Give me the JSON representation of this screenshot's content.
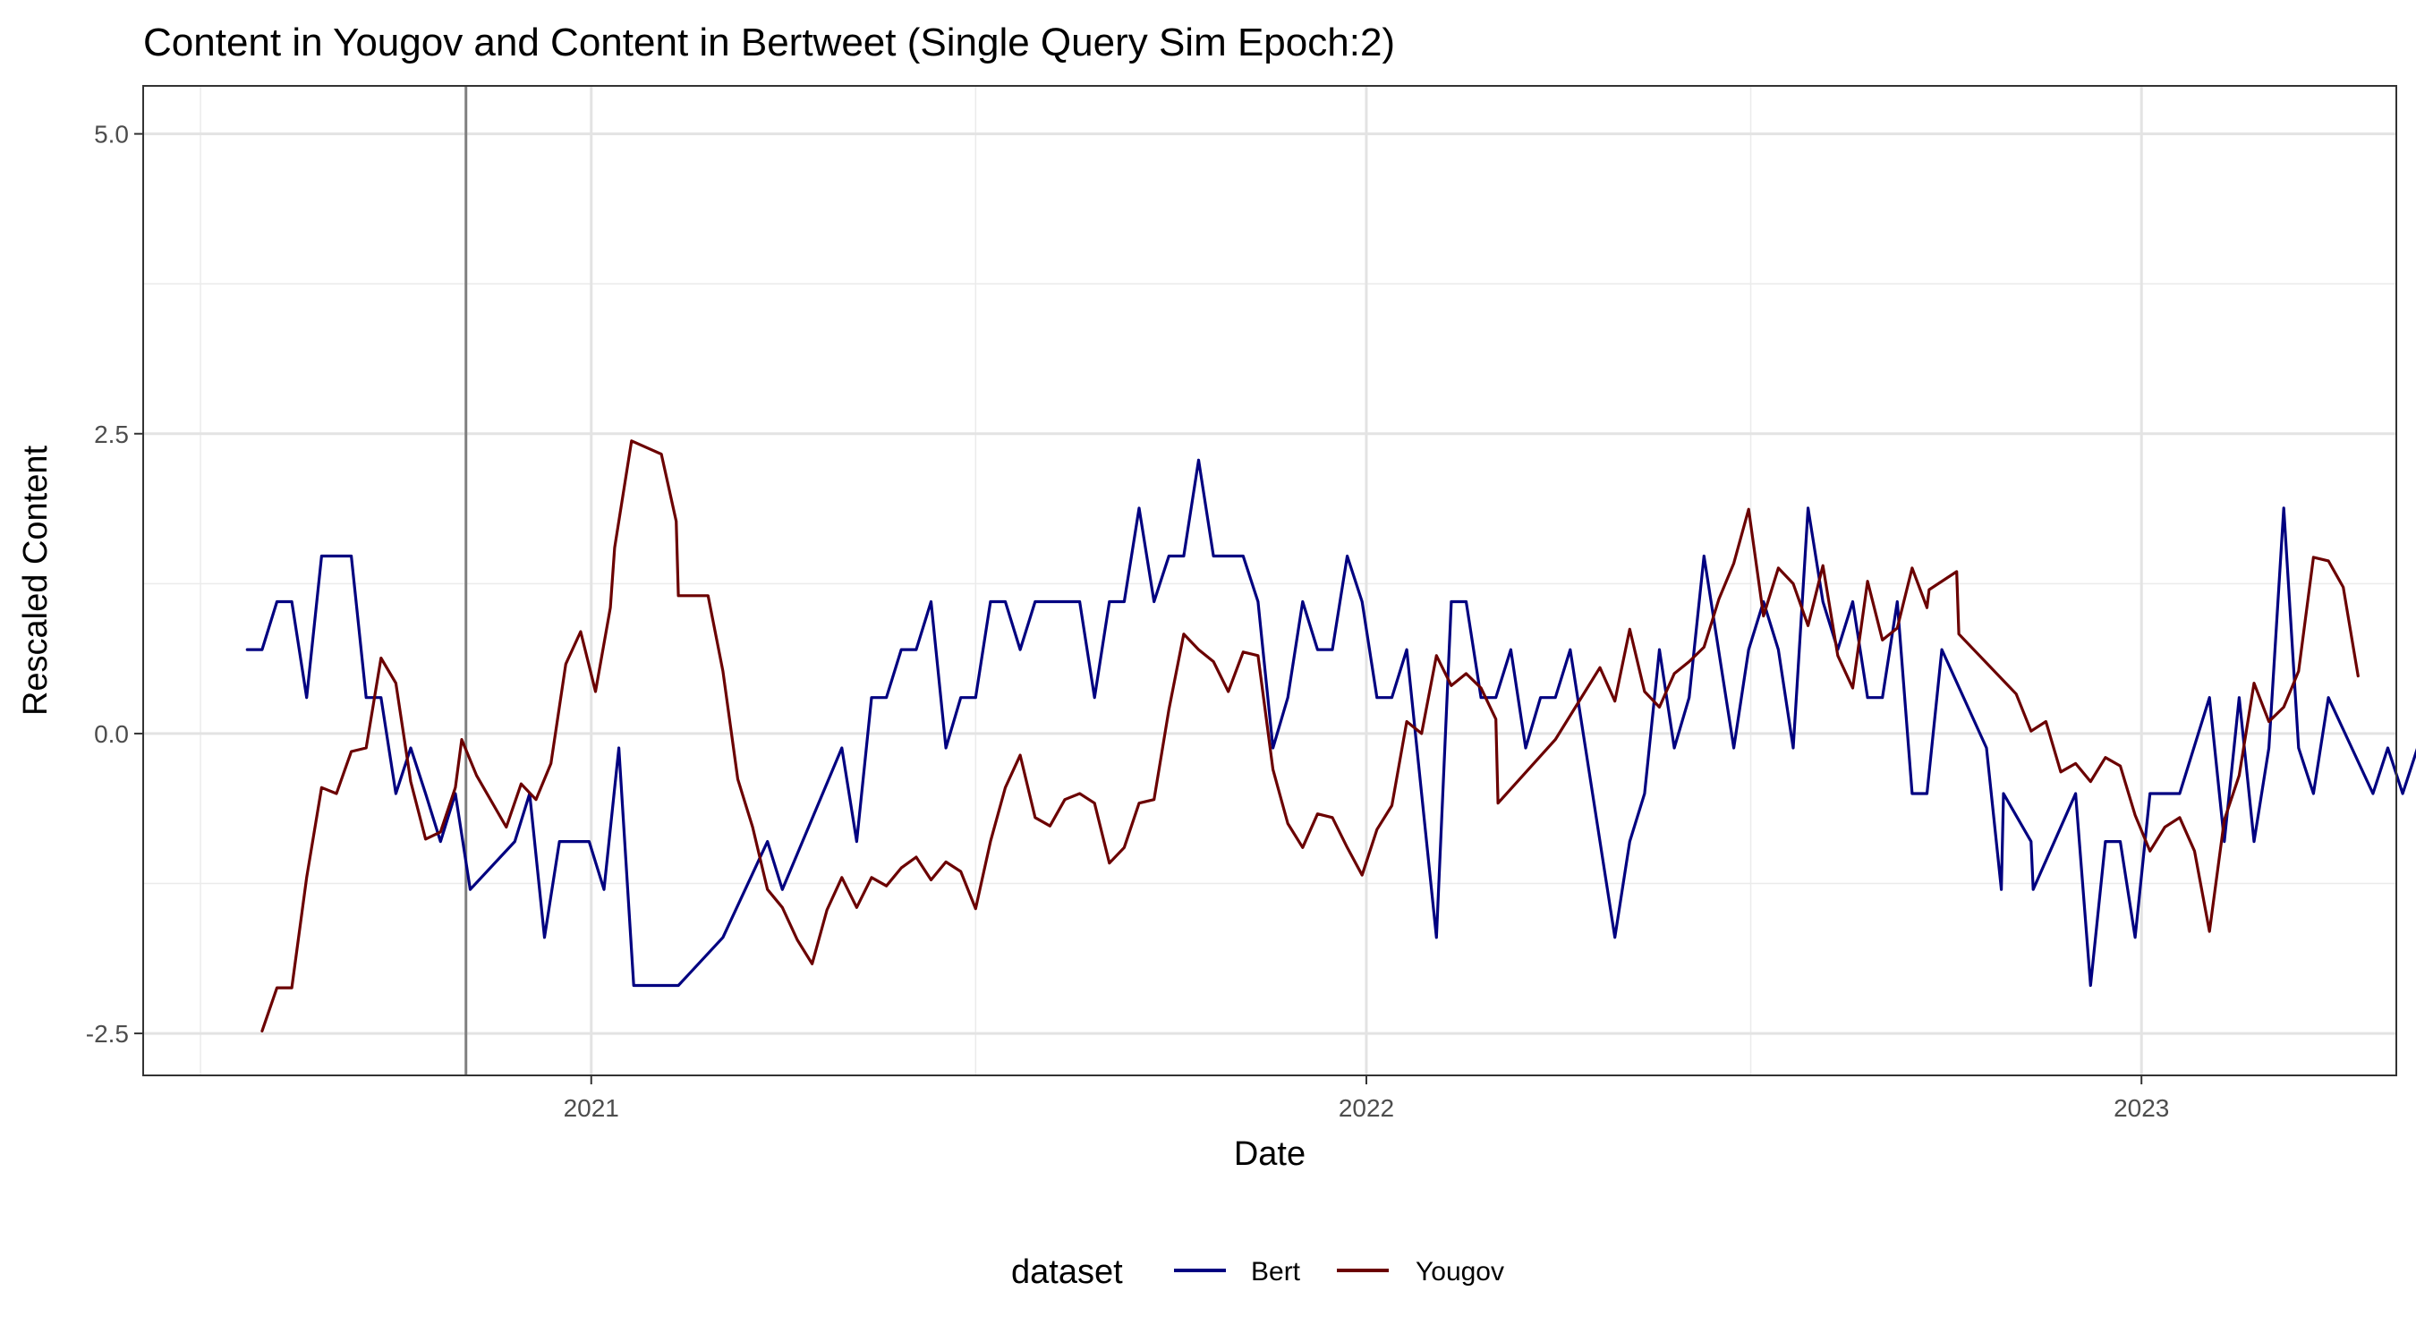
{
  "chart_data": {
    "type": "line",
    "title": "Content in Yougov and Content in Bertweet (Single Query Sim Epoch:2)",
    "xlabel": "Date",
    "ylabel": "Rescaled  Content",
    "xlim": [
      "2020-06-04",
      "2023-05-01"
    ],
    "ylim": [
      -2.85,
      5.4
    ],
    "x_ticks": [
      {
        "date": "2021-01-01",
        "label": "2021"
      },
      {
        "date": "2022-01-01",
        "label": "2022"
      },
      {
        "date": "2023-01-01",
        "label": "2023"
      }
    ],
    "x_minor_ticks": [
      "2020-07-01",
      "2021-07-01",
      "2022-07-01",
      "2023-07-01"
    ],
    "y_ticks": [
      {
        "value": 5.0,
        "label": "5.0"
      },
      {
        "value": 2.5,
        "label": "2.5"
      },
      {
        "value": 0.0,
        "label": "0.0"
      },
      {
        "value": -2.5,
        "label": "-2.5"
      }
    ],
    "y_minor_ticks": [
      3.75,
      1.25,
      -1.25
    ],
    "vline": "2020-11-03",
    "grid": true,
    "legend": {
      "title": "dataset",
      "position": "bottom"
    },
    "series": [
      {
        "name": "Bert",
        "color": "#000080",
        "points": [
          [
            "2020-07-23",
            0.7
          ],
          [
            "2020-07-30",
            0.7
          ],
          [
            "2020-08-06",
            1.1
          ],
          [
            "2020-08-13",
            1.1
          ],
          [
            "2020-08-20",
            0.3
          ],
          [
            "2020-08-27",
            1.48
          ],
          [
            "2020-09-03",
            1.48
          ],
          [
            "2020-09-10",
            1.48
          ],
          [
            "2020-09-17",
            0.3
          ],
          [
            "2020-09-24",
            0.3
          ],
          [
            "2020-10-01",
            -0.5
          ],
          [
            "2020-10-08",
            -0.12
          ],
          [
            "2020-10-15",
            -0.5
          ],
          [
            "2020-10-22",
            -0.9
          ],
          [
            "2020-10-29",
            -0.5
          ],
          [
            "2020-11-05",
            -1.3
          ],
          [
            "2020-11-26",
            -0.9
          ],
          [
            "2020-12-03",
            -0.5
          ],
          [
            "2020-12-10",
            -1.7
          ],
          [
            "2020-12-17",
            -0.9
          ],
          [
            "2020-12-24",
            -0.9
          ],
          [
            "2020-12-31",
            -0.9
          ],
          [
            "2021-01-07",
            -1.3
          ],
          [
            "2021-01-14",
            -0.12
          ],
          [
            "2021-01-21",
            -2.1
          ],
          [
            "2021-02-11",
            -2.1
          ],
          [
            "2021-03-04",
            -1.7
          ],
          [
            "2021-03-25",
            -0.9
          ],
          [
            "2021-04-01",
            -1.3
          ],
          [
            "2021-04-29",
            -0.12
          ],
          [
            "2021-05-06",
            -0.9
          ],
          [
            "2021-05-13",
            0.3
          ],
          [
            "2021-05-20",
            0.3
          ],
          [
            "2021-05-27",
            0.7
          ],
          [
            "2021-06-03",
            0.7
          ],
          [
            "2021-06-10",
            1.1
          ],
          [
            "2021-06-17",
            -0.12
          ],
          [
            "2021-06-24",
            0.3
          ],
          [
            "2021-07-01",
            0.3
          ],
          [
            "2021-07-08",
            1.1
          ],
          [
            "2021-07-15",
            1.1
          ],
          [
            "2021-07-22",
            0.7
          ],
          [
            "2021-07-29",
            1.1
          ],
          [
            "2021-08-19",
            1.1
          ],
          [
            "2021-08-26",
            0.3
          ],
          [
            "2021-09-02",
            1.1
          ],
          [
            "2021-09-09",
            1.1
          ],
          [
            "2021-09-16",
            1.88
          ],
          [
            "2021-09-23",
            1.1
          ],
          [
            "2021-09-30",
            1.48
          ],
          [
            "2021-10-07",
            1.48
          ],
          [
            "2021-10-14",
            2.28
          ],
          [
            "2021-10-21",
            1.48
          ],
          [
            "2021-11-04",
            1.48
          ],
          [
            "2021-11-11",
            1.1
          ],
          [
            "2021-11-18",
            -0.12
          ],
          [
            "2021-11-25",
            0.3
          ],
          [
            "2021-12-02",
            1.1
          ],
          [
            "2021-12-09",
            0.7
          ],
          [
            "2021-12-16",
            0.7
          ],
          [
            "2021-12-23",
            1.48
          ],
          [
            "2021-12-30",
            1.1
          ],
          [
            "2022-01-06",
            0.3
          ],
          [
            "2022-01-13",
            0.3
          ],
          [
            "2022-01-20",
            0.7
          ],
          [
            "2022-02-03",
            -1.7
          ],
          [
            "2022-02-10",
            1.1
          ],
          [
            "2022-02-17",
            1.1
          ],
          [
            "2022-02-24",
            0.3
          ],
          [
            "2022-03-03",
            0.3
          ],
          [
            "2022-03-10",
            0.7
          ],
          [
            "2022-03-17",
            -0.12
          ],
          [
            "2022-03-24",
            0.3
          ],
          [
            "2022-03-31",
            0.3
          ],
          [
            "2022-04-07",
            0.7
          ],
          [
            "2022-04-28",
            -1.7
          ],
          [
            "2022-05-05",
            -0.9
          ],
          [
            "2022-05-12",
            -0.5
          ],
          [
            "2022-05-19",
            0.7
          ],
          [
            "2022-05-26",
            -0.12
          ],
          [
            "2022-06-02",
            0.3
          ],
          [
            "2022-06-09",
            1.48
          ],
          [
            "2022-06-23",
            -0.12
          ],
          [
            "2022-06-30",
            0.7
          ],
          [
            "2022-07-07",
            1.1
          ],
          [
            "2022-07-14",
            0.7
          ],
          [
            "2022-07-21",
            -0.12
          ],
          [
            "2022-07-28",
            1.88
          ],
          [
            "2022-08-04",
            1.1
          ],
          [
            "2022-08-11",
            0.7
          ],
          [
            "2022-08-18",
            1.1
          ],
          [
            "2022-08-25",
            0.3
          ],
          [
            "2022-09-01",
            0.3
          ],
          [
            "2022-09-08",
            1.1
          ],
          [
            "2022-09-15",
            -0.5
          ],
          [
            "2022-09-22",
            -0.5
          ],
          [
            "2022-09-29",
            0.7
          ],
          [
            "2022-10-20",
            -0.12
          ],
          [
            "2022-10-27",
            -1.3
          ],
          [
            "2022-10-28",
            -0.5
          ],
          [
            "2022-11-10",
            -0.9
          ],
          [
            "2022-11-11",
            -1.3
          ],
          [
            "2022-12-01",
            -0.5
          ],
          [
            "2022-12-08",
            -2.1
          ],
          [
            "2022-12-15",
            -0.9
          ],
          [
            "2022-12-22",
            -0.9
          ],
          [
            "2022-12-29",
            -1.7
          ],
          [
            "2023-01-05",
            -0.5
          ],
          [
            "2023-01-12",
            -0.5
          ],
          [
            "2023-01-19",
            -0.5
          ],
          [
            "2023-02-02",
            0.3
          ],
          [
            "2023-02-09",
            -0.9
          ],
          [
            "2023-02-16",
            0.3
          ],
          [
            "2023-02-23",
            -0.9
          ],
          [
            "2023-03-02",
            -0.12
          ],
          [
            "2023-03-09",
            1.88
          ],
          [
            "2023-03-16",
            -0.12
          ],
          [
            "2023-03-23",
            -0.5
          ],
          [
            "2023-03-30",
            0.3
          ],
          [
            "2023-04-20",
            -0.5
          ],
          [
            "2023-04-27",
            -0.12
          ],
          [
            "2023-05-04",
            -0.5
          ],
          [
            "2023-05-11",
            -0.12
          ],
          [
            "2023-05-25",
            -0.9
          ]
        ]
      },
      {
        "name": "Yougov",
        "color": "#6b0000",
        "points": [
          [
            "2020-07-30",
            -2.48
          ],
          [
            "2020-08-06",
            -2.12
          ],
          [
            "2020-08-13",
            -2.12
          ],
          [
            "2020-08-20",
            -1.2
          ],
          [
            "2020-08-27",
            -0.45
          ],
          [
            "2020-09-03",
            -0.5
          ],
          [
            "2020-09-10",
            -0.15
          ],
          [
            "2020-09-17",
            -0.12
          ],
          [
            "2020-09-24",
            0.63
          ],
          [
            "2020-10-01",
            0.42
          ],
          [
            "2020-10-08",
            -0.4
          ],
          [
            "2020-10-15",
            -0.88
          ],
          [
            "2020-10-22",
            -0.82
          ],
          [
            "2020-10-29",
            -0.45
          ],
          [
            "2020-11-01",
            -0.05
          ],
          [
            "2020-11-08",
            -0.35
          ],
          [
            "2020-11-22",
            -0.78
          ],
          [
            "2020-11-29",
            -0.42
          ],
          [
            "2020-12-06",
            -0.55
          ],
          [
            "2020-12-13",
            -0.25
          ],
          [
            "2020-12-20",
            0.58
          ],
          [
            "2020-12-27",
            0.85
          ],
          [
            "2021-01-03",
            0.35
          ],
          [
            "2021-01-10",
            1.05
          ],
          [
            "2021-01-12",
            1.55
          ],
          [
            "2021-01-20",
            2.44
          ],
          [
            "2021-02-03",
            2.33
          ],
          [
            "2021-02-10",
            1.77
          ],
          [
            "2021-02-11",
            1.15
          ],
          [
            "2021-02-25",
            1.15
          ],
          [
            "2021-03-04",
            0.52
          ],
          [
            "2021-03-11",
            -0.38
          ],
          [
            "2021-03-18",
            -0.78
          ],
          [
            "2021-03-25",
            -1.3
          ],
          [
            "2021-04-01",
            -1.45
          ],
          [
            "2021-04-08",
            -1.72
          ],
          [
            "2021-04-15",
            -1.92
          ],
          [
            "2021-04-22",
            -1.47
          ],
          [
            "2021-04-29",
            -1.2
          ],
          [
            "2021-05-06",
            -1.45
          ],
          [
            "2021-05-13",
            -1.2
          ],
          [
            "2021-05-20",
            -1.27
          ],
          [
            "2021-05-27",
            -1.12
          ],
          [
            "2021-06-03",
            -1.03
          ],
          [
            "2021-06-10",
            -1.22
          ],
          [
            "2021-06-17",
            -1.07
          ],
          [
            "2021-06-24",
            -1.15
          ],
          [
            "2021-07-01",
            -1.46
          ],
          [
            "2021-07-08",
            -0.9
          ],
          [
            "2021-07-15",
            -0.45
          ],
          [
            "2021-07-22",
            -0.18
          ],
          [
            "2021-07-29",
            -0.7
          ],
          [
            "2021-08-05",
            -0.77
          ],
          [
            "2021-08-12",
            -0.55
          ],
          [
            "2021-08-19",
            -0.5
          ],
          [
            "2021-08-26",
            -0.58
          ],
          [
            "2021-09-02",
            -1.08
          ],
          [
            "2021-09-09",
            -0.95
          ],
          [
            "2021-09-16",
            -0.58
          ],
          [
            "2021-09-23",
            -0.55
          ],
          [
            "2021-09-30",
            0.2
          ],
          [
            "2021-10-07",
            0.83
          ],
          [
            "2021-10-14",
            0.7
          ],
          [
            "2021-10-21",
            0.6
          ],
          [
            "2021-10-28",
            0.35
          ],
          [
            "2021-11-04",
            0.68
          ],
          [
            "2021-11-11",
            0.65
          ],
          [
            "2021-11-18",
            -0.3
          ],
          [
            "2021-11-25",
            -0.75
          ],
          [
            "2021-12-02",
            -0.95
          ],
          [
            "2021-12-09",
            -0.67
          ],
          [
            "2021-12-16",
            -0.7
          ],
          [
            "2021-12-23",
            -0.95
          ],
          [
            "2021-12-30",
            -1.18
          ],
          [
            "2022-01-06",
            -0.8
          ],
          [
            "2022-01-13",
            -0.6
          ],
          [
            "2022-01-20",
            0.1
          ],
          [
            "2022-01-27",
            0.0
          ],
          [
            "2022-02-03",
            0.65
          ],
          [
            "2022-02-10",
            0.4
          ],
          [
            "2022-02-17",
            0.5
          ],
          [
            "2022-02-24",
            0.38
          ],
          [
            "2022-03-03",
            0.12
          ],
          [
            "2022-03-04",
            -0.58
          ],
          [
            "2022-03-31",
            -0.05
          ],
          [
            "2022-04-14",
            0.35
          ],
          [
            "2022-04-21",
            0.55
          ],
          [
            "2022-04-28",
            0.27
          ],
          [
            "2022-05-05",
            0.87
          ],
          [
            "2022-05-12",
            0.35
          ],
          [
            "2022-05-19",
            0.22
          ],
          [
            "2022-05-26",
            0.5
          ],
          [
            "2022-06-02",
            0.6
          ],
          [
            "2022-06-09",
            0.72
          ],
          [
            "2022-06-16",
            1.12
          ],
          [
            "2022-06-23",
            1.42
          ],
          [
            "2022-06-30",
            1.87
          ],
          [
            "2022-07-07",
            0.98
          ],
          [
            "2022-07-14",
            1.38
          ],
          [
            "2022-07-21",
            1.25
          ],
          [
            "2022-07-28",
            0.9
          ],
          [
            "2022-08-04",
            1.4
          ],
          [
            "2022-08-11",
            0.65
          ],
          [
            "2022-08-18",
            0.38
          ],
          [
            "2022-08-25",
            1.27
          ],
          [
            "2022-09-01",
            0.78
          ],
          [
            "2022-09-08",
            0.88
          ],
          [
            "2022-09-15",
            1.38
          ],
          [
            "2022-09-22",
            1.05
          ],
          [
            "2022-09-23",
            1.2
          ],
          [
            "2022-10-06",
            1.35
          ],
          [
            "2022-10-07",
            0.83
          ],
          [
            "2022-11-03",
            0.33
          ],
          [
            "2022-11-10",
            0.02
          ],
          [
            "2022-11-17",
            0.1
          ],
          [
            "2022-11-24",
            -0.32
          ],
          [
            "2022-12-01",
            -0.25
          ],
          [
            "2022-12-08",
            -0.4
          ],
          [
            "2022-12-15",
            -0.2
          ],
          [
            "2022-12-22",
            -0.27
          ],
          [
            "2022-12-29",
            -0.68
          ],
          [
            "2023-01-05",
            -0.98
          ],
          [
            "2023-01-12",
            -0.78
          ],
          [
            "2023-01-19",
            -0.7
          ],
          [
            "2023-01-26",
            -0.98
          ],
          [
            "2023-02-02",
            -1.65
          ],
          [
            "2023-02-09",
            -0.72
          ],
          [
            "2023-02-16",
            -0.35
          ],
          [
            "2023-02-23",
            0.42
          ],
          [
            "2023-03-02",
            0.1
          ],
          [
            "2023-03-09",
            0.22
          ],
          [
            "2023-03-16",
            0.52
          ],
          [
            "2023-03-23",
            1.47
          ],
          [
            "2023-03-30",
            1.44
          ],
          [
            "2023-04-06",
            1.22
          ],
          [
            "2023-04-13",
            0.48
          ]
        ]
      }
    ]
  }
}
